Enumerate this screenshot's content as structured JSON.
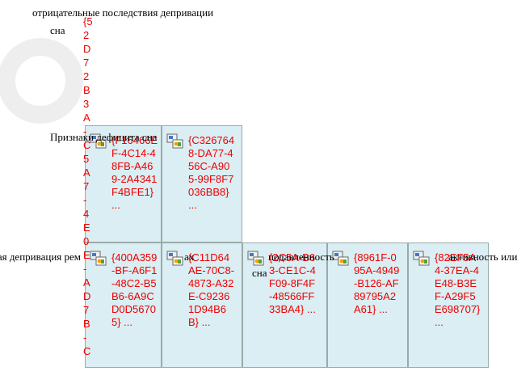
{
  "header": {
    "line1": "отрицательные последствия депривации",
    "line2": "сна"
  },
  "guid_column": "{52D72B3A-C5A7-4E0E-AD7B-C",
  "rows": [
    {
      "label": "Признаки дефицита сна",
      "cells": [
        "{F16466EF-4C14-48FB-A469-2A4341F4BFE1} ...",
        "{C3267648-DA77-456C-A905-99F8F7036BB8} ..."
      ]
    },
    {
      "label": "Кратковременная депривация рем",
      "cells": [
        "{400A359-BF-A6F1-48C2-B5B6-6A9CD0D56705} ...",
        "{C11D64AE-70C8-4873-A32E-C92361D94B6B} ...",
        "{2C5A-B63-CE1C-4F09-8F4F-48566FF33BA4} ...",
        "{8961F-095A-4949-B126-AF89795A2A61} ...",
        "{82EF5A4-37EA-4E48-B3EF-A29F5E698707} ..."
      ]
    }
  ],
  "fragments": [
    "ах",
    "сна",
    "подавленность",
    "активность или ап"
  ]
}
